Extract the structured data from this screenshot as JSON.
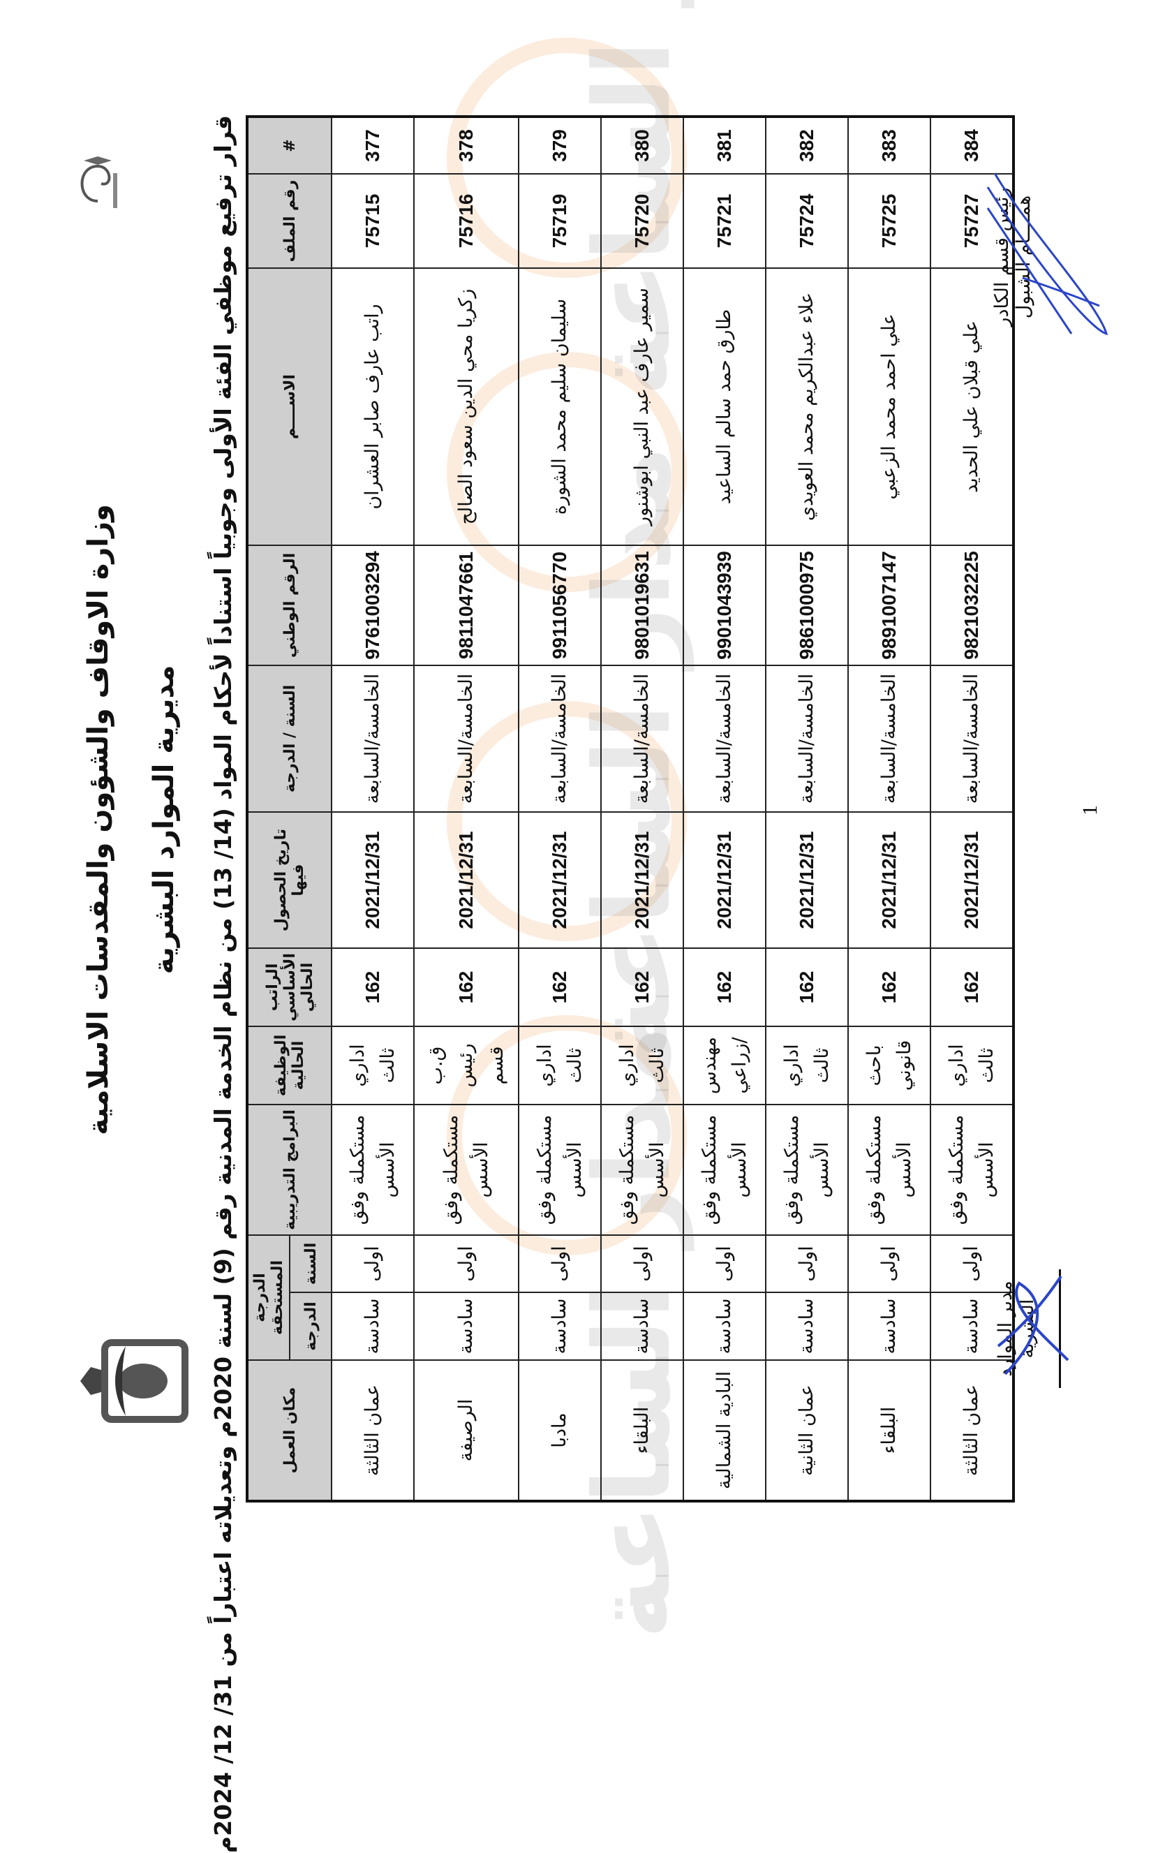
{
  "header": {
    "ministry": "وزارة الاوقاف والشؤون والمقدسات الاسلامية",
    "directorate": "مديرية الموارد البشرية",
    "decision": "قرار ترفيع موظفي الفئة الأولى وجوبياً استناداً لأحكام المواد (14/ 13) من نظام الخدمة المدنية رقم (9) لسنة 2020م وتعديلاته اعتباراً من 31/ 12/ 2024م"
  },
  "watermark": "مدار الساعة الإخبارية",
  "table": {
    "columns": {
      "num": "#",
      "file": "رقم الملف",
      "name": "الاســــم",
      "national_id": "الرقم الوطني",
      "year_grade": "السنة / الدرجة",
      "date_obtained": "تاريخ الحصول فيها",
      "salary": "الراتب الأساسي الحالي",
      "job": "الوظيفة الحالية",
      "programs": "البرامج التدريبية",
      "due_grade": "الدرجة المستحقة",
      "due_degree": "الدرجة",
      "due_year": "السنة",
      "location": "مكان العمل"
    },
    "rows": [
      {
        "num": "377",
        "file": "75715",
        "name": "راتب عارف صابر العشران",
        "national_id": "9761003294",
        "year_grade": "الخامسة/السابعة",
        "date": "2021/12/31",
        "salary": "162",
        "job": "اداري ثالث",
        "programs": "مستكملة وفق الأسس",
        "degree": "سادسة",
        "year": "اولى",
        "location": "عمان الثالثة"
      },
      {
        "num": "378",
        "file": "75716",
        "name": "زكريا محي الدين سعود الصالح",
        "national_id": "9811047661",
        "year_grade": "الخامسة/السابعة",
        "date": "2021/12/31",
        "salary": "162",
        "job": "ق.ب رئيس قسم",
        "programs": "مستكملة وفق الأسس",
        "degree": "سادسة",
        "year": "اولى",
        "location": "الرصيفة"
      },
      {
        "num": "379",
        "file": "75719",
        "name": "سليمان سليم محمد الشورة",
        "national_id": "9911056770",
        "year_grade": "الخامسة/السابعة",
        "date": "2021/12/31",
        "salary": "162",
        "job": "اداري ثالث",
        "programs": "مستكملة وفق الأسس",
        "degree": "سادسة",
        "year": "اولى",
        "location": "مادبا"
      },
      {
        "num": "380",
        "file": "75720",
        "name": "سمير عارف عبد النبي ابوشنور",
        "national_id": "9801019631",
        "year_grade": "الخامسة/السابعة",
        "date": "2021/12/31",
        "salary": "162",
        "job": "اداري ثالث",
        "programs": "مستكملة وفق الأسس",
        "degree": "سادسة",
        "year": "اولى",
        "location": "البلقاء"
      },
      {
        "num": "381",
        "file": "75721",
        "name": "طارق حمد سالم الساعيد",
        "national_id": "9901043939",
        "year_grade": "الخامسة/السابعة",
        "date": "2021/12/31",
        "salary": "162",
        "job": "مهندس /زراعي",
        "programs": "مستكملة وفق الأسس",
        "degree": "سادسة",
        "year": "اولى",
        "location": "البادية الشمالية"
      },
      {
        "num": "382",
        "file": "75724",
        "name": "علاء عبدالكريم محمد العويدي",
        "national_id": "9861000975",
        "year_grade": "الخامسة/السابعة",
        "date": "2021/12/31",
        "salary": "162",
        "job": "اداري ثالث",
        "programs": "مستكملة وفق الأسس",
        "degree": "سادسة",
        "year": "اولى",
        "location": "عمان الثانية"
      },
      {
        "num": "383",
        "file": "75725",
        "name": "علي احمد محمد الزعبي",
        "national_id": "9891007147",
        "year_grade": "الخامسة/السابعة",
        "date": "2021/12/31",
        "salary": "162",
        "job": "باحث قانوني",
        "programs": "مستكملة وفق الأسس",
        "degree": "سادسة",
        "year": "اولى",
        "location": "البلقاء"
      },
      {
        "num": "384",
        "file": "75727",
        "name": "علي قبلان علي الحديد",
        "national_id": "9821032225",
        "year_grade": "الخامسة/السابعة",
        "date": "2021/12/31",
        "salary": "162",
        "job": "اداري ثالث",
        "programs": "مستكملة وفق الأسس",
        "degree": "سادسة",
        "year": "اولى",
        "location": "عمان الثالثة"
      }
    ]
  },
  "signatures": {
    "right_title": "رئيس قسم الكادر",
    "right_name": "همــــام الشبول",
    "left_title": "مدير الموارد البشرية"
  },
  "page_number": "1",
  "colors": {
    "header_fill": "#cfcfcf",
    "signature_ink": "#2b45c8"
  }
}
